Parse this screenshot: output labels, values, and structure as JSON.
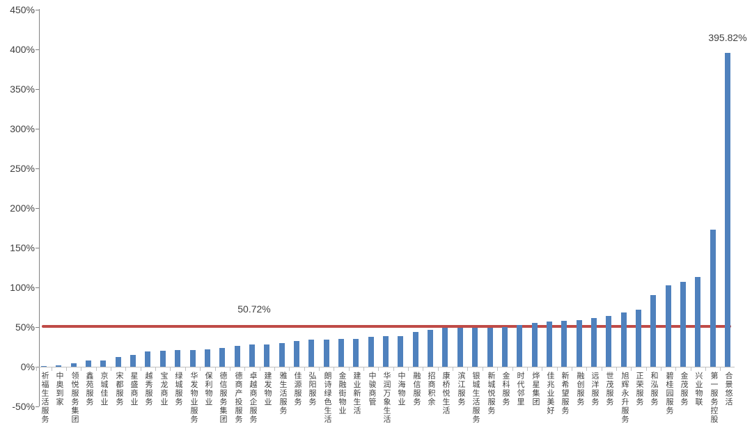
{
  "chart_data": {
    "type": "bar",
    "title": "",
    "xlabel": "",
    "ylabel": "",
    "ylim": [
      -50,
      450
    ],
    "ytick_step": 50,
    "ytick_labels": [
      "450%",
      "400%",
      "350%",
      "300%",
      "250%",
      "200%",
      "150%",
      "100%",
      "50%",
      "0%",
      "-50%"
    ],
    "ytick_values": [
      450,
      400,
      350,
      300,
      250,
      200,
      150,
      100,
      50,
      0,
      -50
    ],
    "grid": false,
    "legend": false,
    "bar_color": "#4f81bd",
    "axis_color": "#808080",
    "text_color": "#404040",
    "categories": [
      "祈福生活服务",
      "中奥到家",
      "领悦服务集团",
      "鑫苑服务",
      "京城佳业",
      "宋都服务",
      "星盛商业",
      "越秀服务",
      "宝龙商业",
      "绿城服务",
      "华发物业服务",
      "保利物业",
      "德信服务集团",
      "德商产投服务",
      "卓越商企服务",
      "建发物业",
      "雅生活服务",
      "佳源服务",
      "弘阳服务",
      "朗诗绿色生活",
      "金融街物业",
      "建业新生活",
      "中骏商管",
      "华润万象生活",
      "中海物业",
      "融信服务",
      "招商积余",
      "康桥悦生活",
      "滨江服务",
      "银城生活服务",
      "新城悦服务",
      "金科服务",
      "时代邻里",
      "烨星集团",
      "佳兆业美好",
      "新希望服务",
      "融创服务",
      "远洋服务",
      "世茂服务",
      "旭辉永升服务",
      "正荣服务",
      "和泓服务",
      "碧桂园服务",
      "金茂服务",
      "兴业物联",
      "第一服务控股",
      "合景悠活"
    ],
    "values": [
      0.5,
      1.5,
      4,
      7.5,
      8,
      12,
      15,
      19,
      20,
      21,
      21,
      22,
      24,
      26.5,
      28.5,
      28.5,
      30,
      32.5,
      34,
      34.5,
      35,
      35.5,
      37.5,
      38.5,
      39,
      44,
      46.5,
      49,
      49,
      49.5,
      49.5,
      50,
      53,
      55,
      57,
      58,
      59,
      61,
      64,
      68,
      71.5,
      90,
      102.5,
      107,
      113,
      173,
      395.82
    ],
    "reference_line": {
      "value": 50.72,
      "label": "50.72%",
      "color": "#bf4b47"
    },
    "annotations": [
      {
        "text": "395.82%",
        "category": "合景悠活",
        "value": 395.82
      }
    ]
  }
}
